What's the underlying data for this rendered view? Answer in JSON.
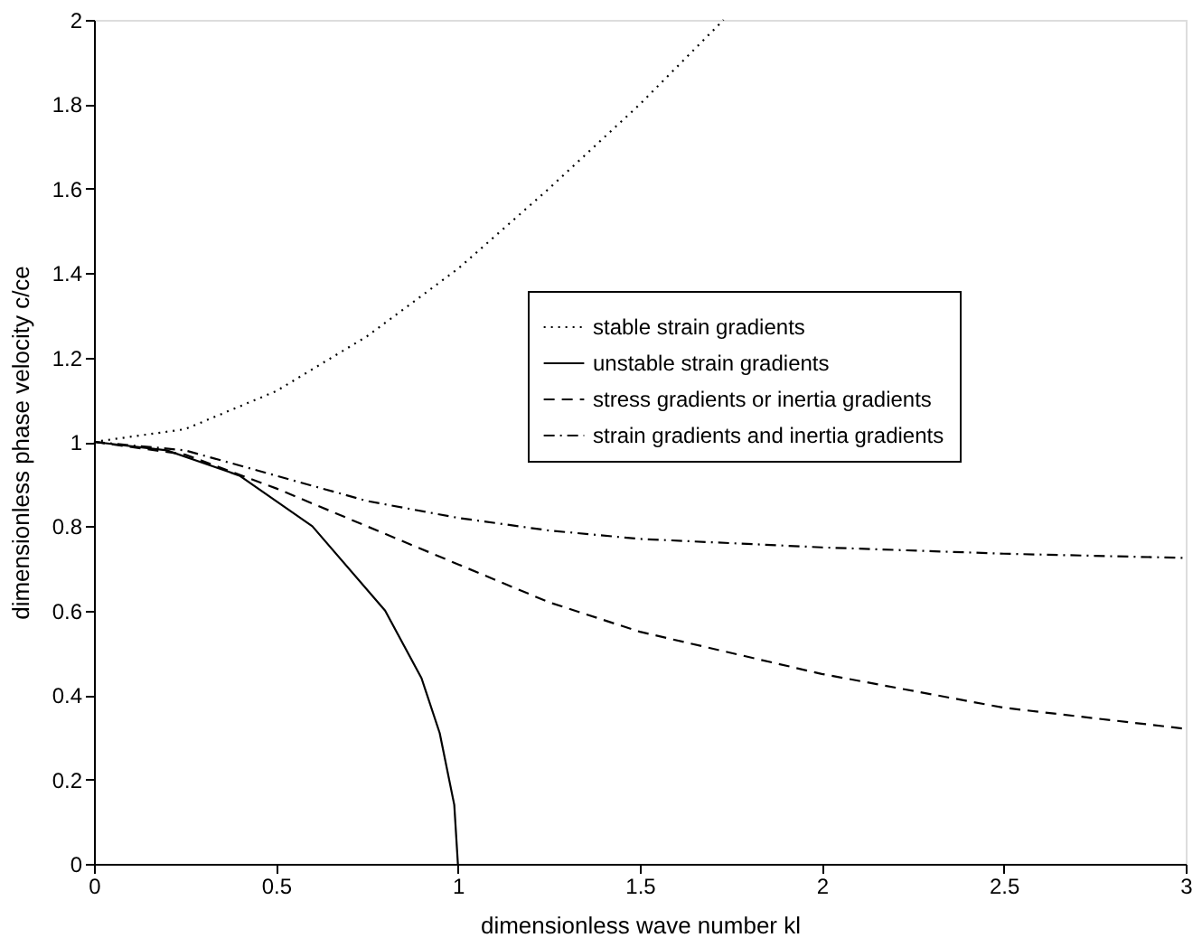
{
  "chart_data": {
    "type": "line",
    "xlabel": "dimensionless wave number kl",
    "ylabel": "dimensionless phase velocity c/ce",
    "xlim": [
      0,
      3
    ],
    "ylim": [
      0,
      2
    ],
    "xticks": [
      0,
      0.5,
      1,
      1.5,
      2,
      2.5,
      3
    ],
    "yticks": [
      0,
      0.2,
      0.4,
      0.6,
      0.8,
      1,
      1.2,
      1.4,
      1.6,
      1.8,
      2
    ],
    "grid": false,
    "legend": "right",
    "marker": "none",
    "series": [
      {
        "name": "stable strain gradients",
        "color": "#000000",
        "line_style": "dotted",
        "x": [
          0,
          0.25,
          0.5,
          0.75,
          1,
          1.25,
          1.5,
          1.73
        ],
        "values": [
          1,
          1.03,
          1.12,
          1.25,
          1.41,
          1.6,
          1.8,
          2.0
        ]
      },
      {
        "name": "unstable strain gradients",
        "color": "#000000",
        "line_style": "solid",
        "x": [
          0,
          0.2,
          0.4,
          0.6,
          0.8,
          0.9,
          0.95,
          0.99,
          1
        ],
        "values": [
          1,
          0.98,
          0.92,
          0.8,
          0.6,
          0.44,
          0.31,
          0.14,
          0
        ]
      },
      {
        "name": "stress gradients or inertia gradients",
        "color": "#000000",
        "line_style": "dashed",
        "x": [
          0,
          0.25,
          0.5,
          0.75,
          1,
          1.25,
          1.5,
          2,
          2.5,
          3
        ],
        "values": [
          1,
          0.97,
          0.89,
          0.8,
          0.71,
          0.62,
          0.55,
          0.45,
          0.37,
          0.32
        ]
      },
      {
        "name": "strain gradients and inertia gradients",
        "color": "#000000",
        "line_style": "dashdot",
        "x": [
          0,
          0.25,
          0.5,
          0.75,
          1,
          1.25,
          1.5,
          2,
          2.5,
          3
        ],
        "values": [
          1,
          0.98,
          0.92,
          0.86,
          0.82,
          0.79,
          0.77,
          0.75,
          0.735,
          0.725
        ]
      }
    ]
  }
}
